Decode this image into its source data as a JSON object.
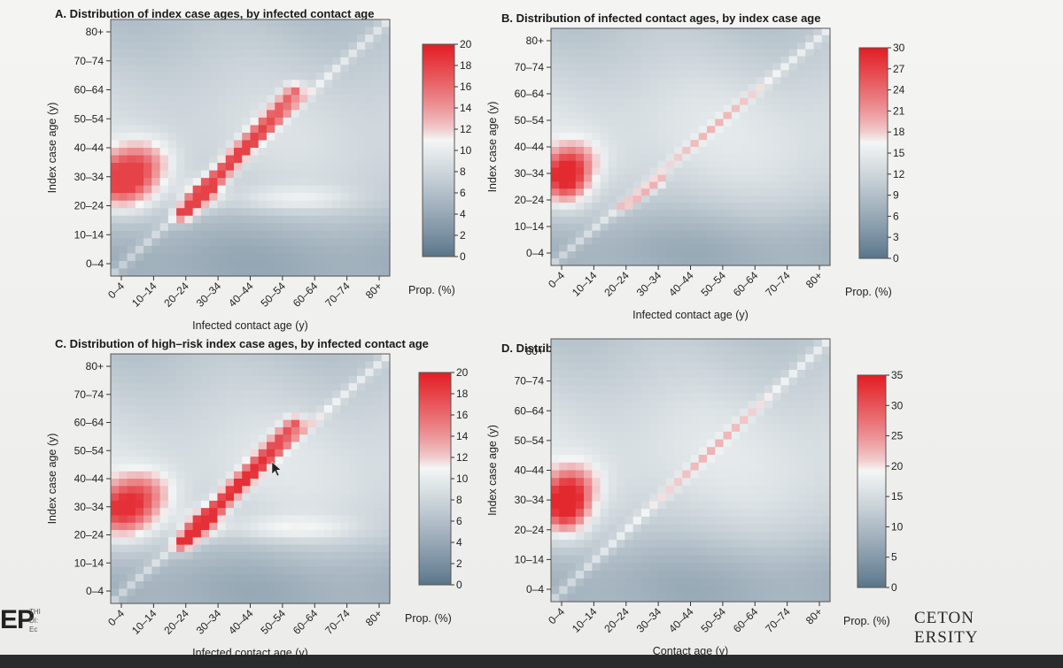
{
  "chart_data": [
    {
      "id": "A",
      "type": "heatmap",
      "title": "A. Distribution of index case ages, by infected contact age",
      "xlabel": "Infected contact age (y)",
      "ylabel": "Index case age (y)",
      "x_ticks": [
        "0–4",
        "10–14",
        "20–24",
        "30–34",
        "40–44",
        "50–54",
        "60–64",
        "70–74",
        "80+"
      ],
      "y_ticks": [
        "0–4",
        "10–14",
        "20–24",
        "30–34",
        "40–44",
        "50–54",
        "60–64",
        "70–74",
        "80+"
      ],
      "colorbar_label": "Prop. (%)",
      "colorbar_ticks": [
        0,
        2,
        4,
        6,
        8,
        10,
        12,
        14,
        16,
        18,
        20
      ],
      "vmin": 0,
      "vmax": 20,
      "colors": {
        "low": "#58748a",
        "mid": "#f4f6f6",
        "high": "#e21e24"
      },
      "peak_value": 18
    },
    {
      "id": "B",
      "type": "heatmap",
      "title": "B. Distribution of infected contact ages, by index case age",
      "xlabel": "Infected contact age (y)",
      "ylabel": "Index case age (y)",
      "x_ticks": [
        "0–4",
        "10–14",
        "20–24",
        "30–34",
        "40–44",
        "50–54",
        "60–64",
        "70–74",
        "80+"
      ],
      "y_ticks": [
        "0–4",
        "10–14",
        "20–24",
        "30–34",
        "40–44",
        "50–54",
        "60–64",
        "70–74",
        "80+"
      ],
      "colorbar_label": "Prop. (%)",
      "colorbar_ticks": [
        0,
        3,
        6,
        9,
        12,
        15,
        18,
        21,
        24,
        27,
        30
      ],
      "vmin": 0,
      "vmax": 30,
      "colors": {
        "low": "#58748a",
        "mid": "#f4f6f6",
        "high": "#e21e24"
      },
      "peak_value": 29
    },
    {
      "id": "C",
      "type": "heatmap",
      "title": "C. Distribution of high–risk index case ages, by infected contact age",
      "xlabel": "Infected contact age (y)",
      "ylabel": "Index case age (y)",
      "x_ticks": [
        "0–4",
        "10–14",
        "20–24",
        "30–34",
        "40–44",
        "50–54",
        "60–64",
        "70–74",
        "80+"
      ],
      "y_ticks": [
        "0–4",
        "10–14",
        "20–24",
        "30–34",
        "40–44",
        "50–54",
        "60–64",
        "70–74",
        "80+"
      ],
      "colorbar_label": "Prop. (%)",
      "colorbar_ticks": [
        0,
        2,
        4,
        6,
        8,
        10,
        12,
        14,
        16,
        18,
        20
      ],
      "vmin": 0,
      "vmax": 20,
      "colors": {
        "low": "#58748a",
        "mid": "#f4f6f6",
        "high": "#e21e24"
      },
      "peak_value": 19
    },
    {
      "id": "D",
      "type": "heatmap",
      "title": "D. Distribution of high–risk contact ages, by index case age",
      "xlabel": "Contact age (y)",
      "ylabel": "Index case age (y)",
      "x_ticks": [
        "0–4",
        "10–14",
        "20–24",
        "30–34",
        "40–44",
        "50–54",
        "60–64",
        "70–74",
        "80+"
      ],
      "y_ticks": [
        "0–4",
        "10–14",
        "20–24",
        "30–34",
        "40–44",
        "50–54",
        "60–64",
        "70–74",
        "80+"
      ],
      "colorbar_label": "Prop. (%)",
      "colorbar_ticks": [
        0,
        5,
        10,
        15,
        20,
        25,
        30,
        35
      ],
      "vmin": 0,
      "vmax": 35,
      "colors": {
        "low": "#58748a",
        "mid": "#f4f6f6",
        "high": "#e21e24"
      },
      "peak_value": 34
    }
  ],
  "footer": {
    "left_logo": "EP",
    "left_logo_sub": [
      "THI",
      "DI:",
      "Ec"
    ],
    "right_logo": [
      "CETON",
      "ERSITY"
    ]
  }
}
